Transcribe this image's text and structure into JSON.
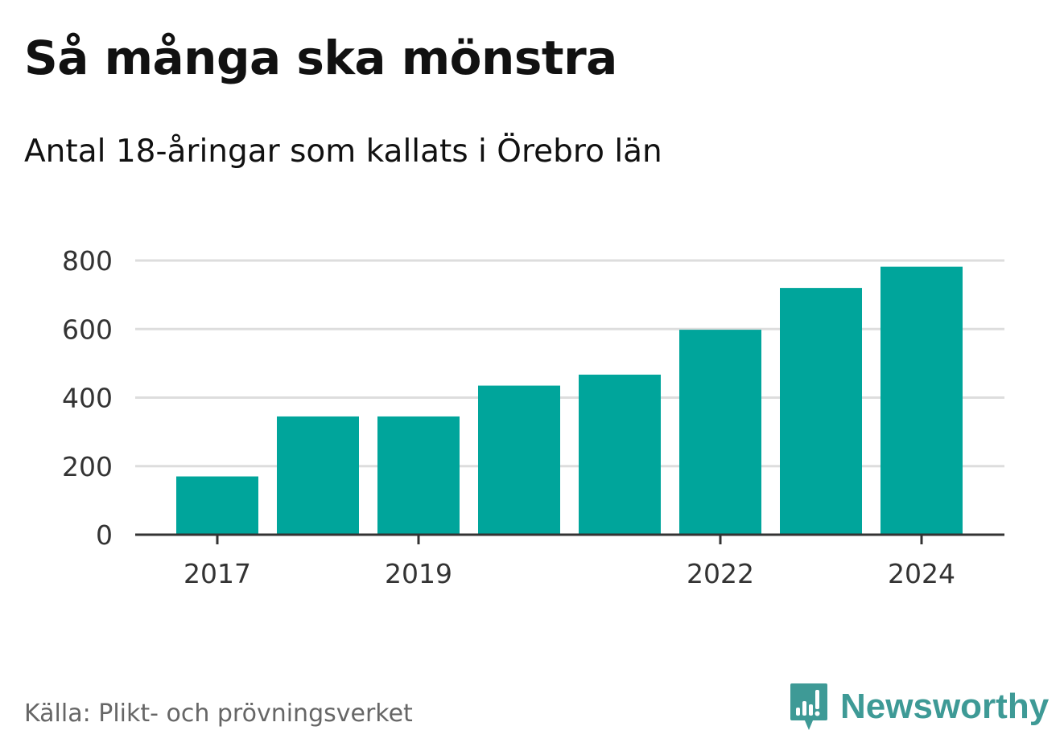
{
  "title": "Så många ska mönstra",
  "subtitle": "Antal 18-åringar som kallats i Örebro län",
  "source": "Källa: Plikt- och prövningsverket",
  "brand": {
    "name": "Newsworthy",
    "icon": "newsworthy-logo-icon",
    "color": "#3e9a96"
  },
  "colors": {
    "bar": "#00a59b",
    "grid": "#dddddd",
    "axis": "#333333"
  },
  "chart_data": {
    "type": "bar",
    "title": "Så många ska mönstra",
    "subtitle": "Antal 18-åringar som kallats i Örebro län",
    "categories": [
      "2017",
      "2018",
      "2019",
      "2020",
      "2021",
      "2022",
      "2023",
      "2024"
    ],
    "x_tick_labels": [
      "2017",
      "",
      "2019",
      "",
      "",
      "2022",
      "",
      "2024"
    ],
    "values": [
      170,
      345,
      345,
      435,
      467,
      598,
      720,
      782
    ],
    "ylim": [
      0,
      800
    ],
    "yticks": [
      0,
      200,
      400,
      600,
      800
    ],
    "xlabel": "",
    "ylabel": "",
    "grid": true
  }
}
